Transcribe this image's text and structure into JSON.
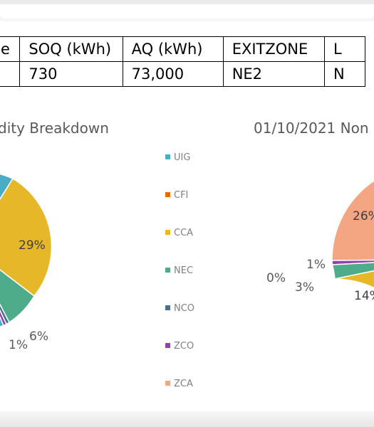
{
  "table": {
    "headers": [
      "e",
      "SOQ (kWh)",
      "AQ (kWh)",
      "EXITZONE",
      "L"
    ],
    "row": [
      "",
      "730",
      "73,000",
      "NE2",
      "N"
    ]
  },
  "left_chart": {
    "title": "dity Breakdown",
    "labels": [
      "29%",
      "1%",
      "6%"
    ]
  },
  "right_chart": {
    "title": "01/10/2021 Non",
    "labels": [
      "26%",
      "1%",
      "0%",
      "3%",
      "14%"
    ]
  },
  "legend": [
    {
      "label": "UIG",
      "color": "#4bacc6"
    },
    {
      "label": "CFI",
      "color": "#e36c09"
    },
    {
      "label": "CCA",
      "color": "#e6b729"
    },
    {
      "label": "NEC",
      "color": "#4eac8a"
    },
    {
      "label": "NCO",
      "color": "#44748d"
    },
    {
      "label": "ZCO",
      "color": "#8e44ad"
    },
    {
      "label": "ZCA",
      "color": "#f4a582"
    }
  ],
  "colors": {
    "uig": "#4bacc6",
    "cca": "#e6b729",
    "nec": "#4eac8a",
    "nco": "#44748d",
    "zco": "#8e44ad",
    "zca": "#f4a582"
  }
}
